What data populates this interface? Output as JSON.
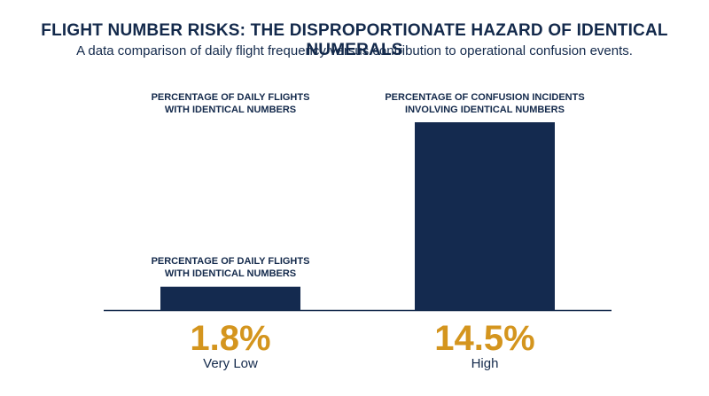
{
  "header": {
    "title": "FLIGHT NUMBER RISKS: THE DISPROPORTIONATE HAZARD OF IDENTICAL NUMERALS",
    "subtitle": "A data comparison of daily flight frequency versus contribution to operational confusion events."
  },
  "colors": {
    "bar": "#142a4f",
    "accent": "#d4951e",
    "text": "#13294b",
    "axis": "#13294b"
  },
  "chart_data": {
    "type": "bar",
    "title": "FLIGHT NUMBER RISKS: THE DISPROPORTIONATE HAZARD OF IDENTICAL NUMERALS",
    "subtitle": "A data comparison of daily flight frequency versus contribution to operational confusion events.",
    "categories": [
      "PERCENTAGE OF DAILY FLIGHTS WITH IDENTICAL NUMBERS",
      "PERCENTAGE OF CONFUSION INCIDENTS INVOLVING IDENTICAL NUMBERS"
    ],
    "top_labels": [
      [
        "PERCENTAGE OF DAILY FLIGHTS",
        "WITH IDENTICAL NUMBERS"
      ],
      [
        "PERCENTAGE OF CONFUSION INCIDENTS",
        "INVOLVING IDENTICAL NUMBERS"
      ]
    ],
    "inline_labels": [
      [
        "PERCENTAGE OF DAILY FLIGHTS",
        "WITH IDENTICAL NUMBERS"
      ]
    ],
    "values": [
      1.8,
      14.5
    ],
    "value_labels": [
      "1.8%",
      "14.5%"
    ],
    "descriptors": [
      "Very Low",
      "High"
    ],
    "unit": "%",
    "ylim": [
      0,
      14.5
    ],
    "xlabel": "",
    "ylabel": "",
    "grid": false,
    "legend": "none"
  }
}
